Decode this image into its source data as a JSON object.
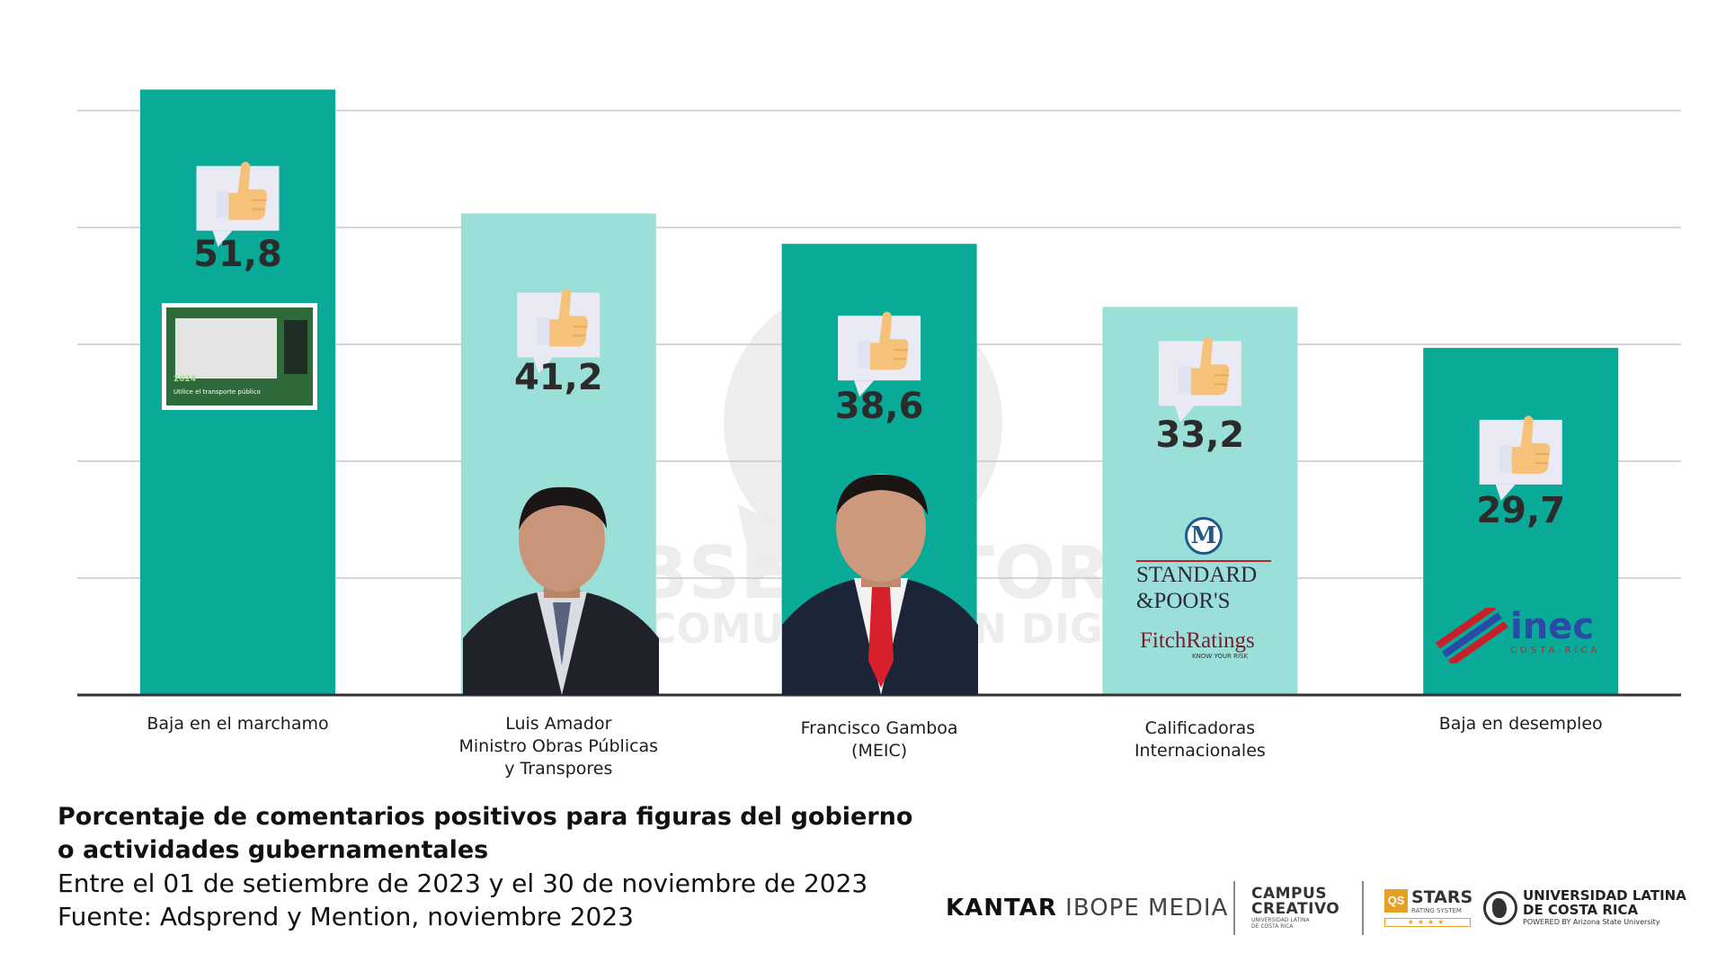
{
  "chart_data": {
    "type": "bar",
    "title": "Porcentaje de comentarios positivos para figuras del gobierno o actividades gubernamentales",
    "subtitle_lines": [
      "Entre el 01 de setiembre de 2023 y el 30 de noviembre de 2023",
      "Fuente: Adsprend y Mention, noviembre 2023"
    ],
    "categories": [
      [
        "Baja en el marchamo"
      ],
      [
        "Luis Amador",
        "Ministro Obras Públicas",
        "y Transpores"
      ],
      [
        "Francisco Gamboa",
        "(MEIC)"
      ],
      [
        "Calificadoras",
        "Internacionales"
      ],
      [
        "Baja en desempleo"
      ]
    ],
    "values": [
      51.8,
      41.2,
      38.6,
      33.2,
      29.7
    ],
    "value_labels": [
      "51,8",
      "41,2",
      "38,6",
      "33,2",
      "29,7"
    ],
    "bar_colors": [
      "#0aaa98",
      "#9be0d8",
      "#0aaa98",
      "#9be0d8",
      "#0aaa98"
    ],
    "ylim": [
      0,
      50
    ],
    "gridlines": [
      10,
      20,
      30,
      40,
      50
    ],
    "grid": true,
    "xlabel": "",
    "ylabel": ""
  },
  "title_lines": [
    "Porcentaje de comentarios positivos para figuras del gobierno",
    "o actividades gubernamentales"
  ],
  "watermark": {
    "line1": "OBSERVATORIO",
    "line2": "DE COMUNICACIÓN DIGITAL"
  },
  "bar_images": {
    "marchamo_card": [
      "Utilice el transporte público",
      "2024"
    ],
    "standard_poors": [
      "STANDARD",
      "&POOR'S"
    ],
    "moodys_letter": "M",
    "fitch": [
      "FitchRatings",
      "KNOW YOUR RISK"
    ],
    "inec": [
      "inec",
      "COSTA RICA"
    ]
  },
  "footer": {
    "kantar_bold": "KANTAR",
    "kantar_rest": "IBOPE MEDIA",
    "campus_line1": "CAMPUS",
    "campus_line2": "CREATIVO",
    "campus_small": "UNIVERSIDAD LATINA DE COSTA RICA",
    "qs_box": "QS",
    "qs_stars": "STARS",
    "qs_rating": "RATING SYSTEM",
    "qs_bar": "★★★★",
    "ul_line1": "UNIVERSIDAD LATINA",
    "ul_line2": "DE COSTA RICA",
    "ul_powered": "POWERED BY Arizona State University"
  },
  "colors": {
    "dark_teal": "#0aaa98",
    "light_teal": "#9be0d8",
    "thumb_bubble": "#e9eaf4",
    "thumb_hand": "#f6c27a"
  }
}
